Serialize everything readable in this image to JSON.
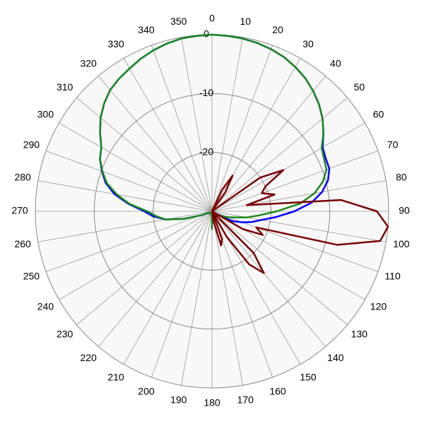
{
  "chart_data": {
    "type": "polar",
    "theta": [
      0,
      5,
      10,
      15,
      20,
      25,
      30,
      35,
      40,
      45,
      50,
      55,
      60,
      65,
      70,
      75,
      80,
      85,
      90,
      95,
      100,
      105,
      110,
      115,
      120,
      125,
      130,
      135,
      140,
      145,
      150,
      155,
      160,
      165,
      170,
      175,
      180,
      185,
      190,
      195,
      200,
      205,
      210,
      215,
      220,
      225,
      230,
      235,
      240,
      245,
      250,
      255,
      260,
      265,
      270,
      275,
      280,
      285,
      290,
      295,
      300,
      305,
      310,
      315,
      320,
      325,
      330,
      335,
      340,
      345,
      350,
      355
    ],
    "rlim": [
      -30,
      0
    ],
    "rticks": [
      -20,
      -10,
      0
    ],
    "thetaticks": [
      0,
      10,
      20,
      30,
      40,
      50,
      60,
      70,
      80,
      90,
      100,
      110,
      120,
      130,
      140,
      150,
      160,
      170,
      180,
      190,
      200,
      210,
      220,
      230,
      240,
      250,
      260,
      270,
      280,
      290,
      300,
      310,
      320,
      330,
      340,
      350
    ],
    "grid": true,
    "series": [
      {
        "color": "#0000ff",
        "values": [
          0,
          -0.1,
          -0.2,
          -0.4,
          -0.7,
          -1.1,
          -1.7,
          -2.4,
          -3.3,
          -4.3,
          -5.5,
          -6.9,
          -8.3,
          -8.7,
          -8.8,
          -9.6,
          -11,
          -13,
          -16,
          -19,
          -21.5,
          -23,
          -24.5,
          -26,
          -28,
          -29.5,
          -29.5,
          -29.5,
          -29.5,
          -29.5,
          -29.5,
          -29.5,
          -29.5,
          -29.5,
          -29.5,
          -29.5,
          -29.5,
          -29.5,
          -29.5,
          -29.5,
          -29.5,
          -29.5,
          -29.5,
          -29.5,
          -29.5,
          -29.5,
          -29.5,
          -29.5,
          -29.5,
          -29.5,
          -28,
          -25,
          -22,
          -20,
          -18.5,
          -15.8,
          -13.2,
          -11.3,
          -10.1,
          -9,
          -8.3,
          -6.8,
          -5.3,
          -4.1,
          -3.1,
          -2.5,
          -2,
          -1.4,
          -0.9,
          -0.5,
          -0.2,
          -0.1
        ]
      },
      {
        "color": "#1a8a1a",
        "values": [
          0,
          -0.1,
          -0.2,
          -0.4,
          -0.7,
          -1.1,
          -1.7,
          -2.4,
          -3.3,
          -4.3,
          -5.5,
          -6.9,
          -8.5,
          -9,
          -9.3,
          -10.5,
          -12.3,
          -15,
          -19,
          -22,
          -24,
          -26,
          -27,
          -28,
          -29,
          -29.5,
          -29.5,
          -29.5,
          -29.5,
          -29.5,
          -29.5,
          -29.5,
          -29.5,
          -29.5,
          -29.5,
          -29.5,
          -27,
          -29.5,
          -29.5,
          -29.5,
          -29.5,
          -29.5,
          -29.5,
          -29.5,
          -29.5,
          -29.5,
          -29.5,
          -29.5,
          -29.5,
          -29.5,
          -28,
          -25,
          -22,
          -20.5,
          -19,
          -16,
          -13.6,
          -11.5,
          -10.2,
          -9,
          -8.3,
          -6.8,
          -5.3,
          -4.1,
          -3.1,
          -2.5,
          -2,
          -1.4,
          -0.9,
          -0.5,
          -0.2,
          -0.1
        ]
      },
      {
        "color": "#7a0000",
        "values": [
          -30,
          -30,
          -30,
          -30,
          -30,
          -26,
          -23,
          -26,
          -30,
          -30,
          -30,
          -20,
          -16,
          -20,
          -21,
          -19,
          -24,
          -8,
          -2,
          0,
          -1,
          -8,
          -22,
          -20.5,
          -24,
          -30,
          -30,
          -20,
          -16.3,
          -19,
          -25,
          -30,
          -25,
          -24,
          -28,
          -30,
          -30,
          -30,
          -30,
          -30,
          -30,
          -30,
          -30,
          -30,
          -30,
          -30,
          -30,
          -30,
          -30,
          -30,
          -30,
          -30,
          -30,
          -30,
          -30,
          -30,
          -30,
          -30,
          -30,
          -30,
          -30,
          -30,
          -30,
          -30,
          -30,
          -30,
          -30,
          -30,
          -30,
          -30,
          -30,
          -30
        ]
      }
    ]
  }
}
